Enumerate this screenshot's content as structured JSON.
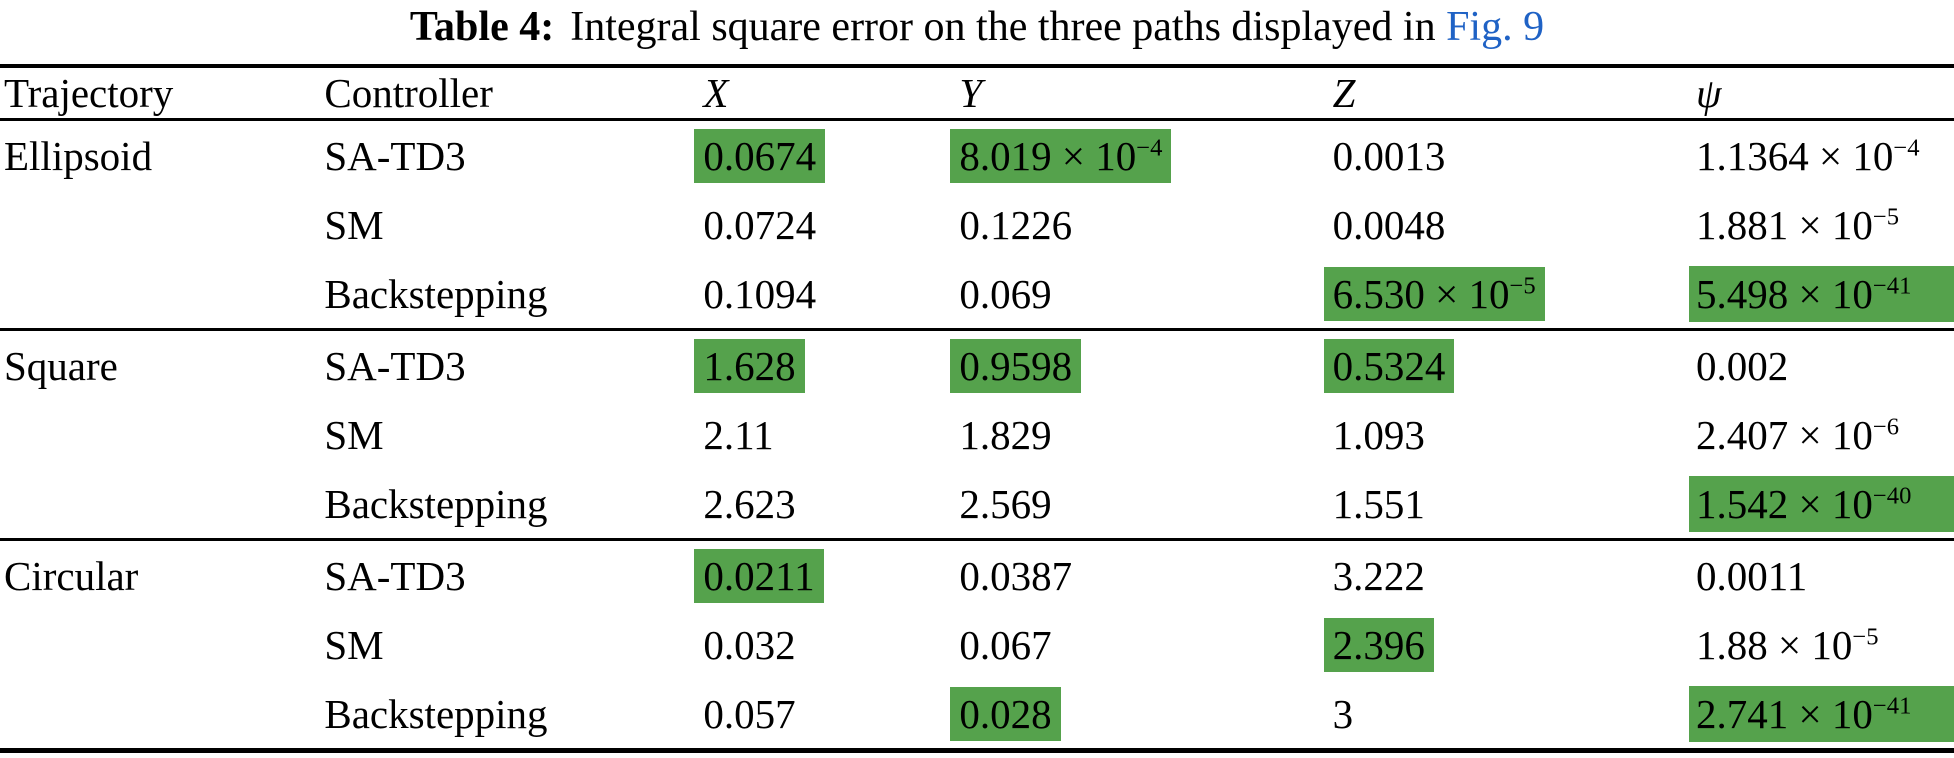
{
  "colors": {
    "highlight_green": "#55a24c",
    "link_blue": "#1f62c5",
    "text": "#000000",
    "background": "#ffffff"
  },
  "caption": {
    "label": "Table 4:",
    "body": "Integral square error on the three paths displayed in",
    "link": "Fig. 9"
  },
  "notation": {
    "times": "×",
    "base": "10"
  },
  "table": {
    "columns": [
      {
        "label": "Trajectory",
        "italic": false
      },
      {
        "label": "Controller",
        "italic": false
      },
      {
        "label": "X",
        "italic": true
      },
      {
        "label": "Y",
        "italic": true
      },
      {
        "label": "Z",
        "italic": true
      },
      {
        "label": "ψ",
        "italic": true
      }
    ],
    "groups": [
      {
        "trajectory": "Ellipsoid",
        "rows": [
          {
            "controller": "SA-TD3",
            "values": [
              {
                "text": "0.0674",
                "highlight": true
              },
              {
                "text": "8.019",
                "exp": "−4",
                "highlight": true
              },
              {
                "text": "0.0013",
                "highlight": false
              },
              {
                "text": "1.1364",
                "exp": "−4",
                "highlight": false
              }
            ]
          },
          {
            "controller": "SM",
            "values": [
              {
                "text": "0.0724",
                "highlight": false
              },
              {
                "text": "0.1226",
                "highlight": false
              },
              {
                "text": "0.0048",
                "highlight": false
              },
              {
                "text": "1.881",
                "exp": "−5",
                "highlight": false
              }
            ]
          },
          {
            "controller": "Backstepping",
            "values": [
              {
                "text": "0.1094",
                "highlight": false
              },
              {
                "text": "0.069",
                "highlight": false
              },
              {
                "text": "6.530",
                "exp": "−5",
                "highlight": true
              },
              {
                "text": "5.498",
                "exp": "−41",
                "highlight": true
              }
            ]
          }
        ]
      },
      {
        "trajectory": "Square",
        "rows": [
          {
            "controller": "SA-TD3",
            "values": [
              {
                "text": "1.628",
                "highlight": true
              },
              {
                "text": "0.9598",
                "highlight": true
              },
              {
                "text": "0.5324",
                "highlight": true
              },
              {
                "text": "0.002",
                "highlight": false
              }
            ]
          },
          {
            "controller": "SM",
            "values": [
              {
                "text": "2.11",
                "highlight": false
              },
              {
                "text": "1.829",
                "highlight": false
              },
              {
                "text": "1.093",
                "highlight": false
              },
              {
                "text": "2.407",
                "exp": "−6",
                "highlight": false
              }
            ]
          },
          {
            "controller": "Backstepping",
            "values": [
              {
                "text": "2.623",
                "highlight": false
              },
              {
                "text": "2.569",
                "highlight": false
              },
              {
                "text": "1.551",
                "highlight": false
              },
              {
                "text": "1.542",
                "exp": "−40",
                "highlight": true
              }
            ]
          }
        ]
      },
      {
        "trajectory": "Circular",
        "rows": [
          {
            "controller": "SA-TD3",
            "values": [
              {
                "text": "0.0211",
                "highlight": true
              },
              {
                "text": "0.0387",
                "highlight": false
              },
              {
                "text": "3.222",
                "highlight": false
              },
              {
                "text": "0.0011",
                "highlight": false
              }
            ]
          },
          {
            "controller": "SM",
            "values": [
              {
                "text": "0.032",
                "highlight": false
              },
              {
                "text": "0.067",
                "highlight": false
              },
              {
                "text": "2.396",
                "highlight": true
              },
              {
                "text": "1.88",
                "exp": "−5",
                "highlight": false
              }
            ]
          },
          {
            "controller": "Backstepping",
            "values": [
              {
                "text": "0.057",
                "highlight": false
              },
              {
                "text": "0.028",
                "highlight": true
              },
              {
                "text": "3",
                "highlight": false
              },
              {
                "text": "2.741",
                "exp": "−41",
                "highlight": true
              }
            ]
          }
        ]
      }
    ]
  }
}
